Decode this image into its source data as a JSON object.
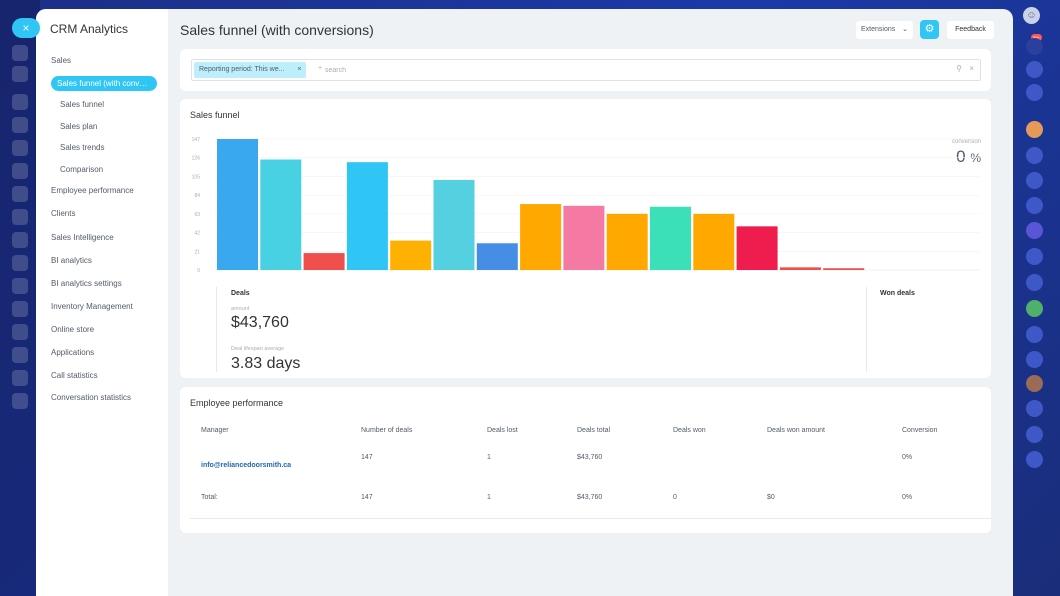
{
  "close_label": "×",
  "sidebar": {
    "title": "CRM Analytics",
    "items": [
      {
        "label": "Sales",
        "sub": false,
        "active": false
      },
      {
        "label": "Sales funnel (with conversions)",
        "sub": false,
        "active": true
      },
      {
        "label": "Sales funnel",
        "sub": true,
        "active": false
      },
      {
        "label": "Sales plan",
        "sub": true,
        "active": false
      },
      {
        "label": "Sales trends",
        "sub": true,
        "active": false
      },
      {
        "label": "Comparison",
        "sub": true,
        "active": false
      },
      {
        "label": "Employee performance",
        "sub": false,
        "active": false
      },
      {
        "label": "Clients",
        "sub": false,
        "active": false
      },
      {
        "label": "Sales Intelligence",
        "sub": false,
        "active": false
      },
      {
        "label": "BI analytics",
        "sub": false,
        "active": false
      },
      {
        "label": "BI analytics settings",
        "sub": false,
        "active": false
      },
      {
        "label": "Inventory Management",
        "sub": false,
        "active": false
      },
      {
        "label": "Online store",
        "sub": false,
        "active": false
      },
      {
        "label": "Applications",
        "sub": false,
        "active": false
      },
      {
        "label": "Call statistics",
        "sub": false,
        "active": false
      },
      {
        "label": "Conversation statistics",
        "sub": false,
        "active": false
      }
    ]
  },
  "header": {
    "title": "Sales funnel (with conversions)",
    "extensions_label": "Extensions",
    "feedback_label": "Feedback"
  },
  "filter": {
    "chip_label": "Reporting period: This we...",
    "search_placeholder": "search",
    "plus": "+"
  },
  "funnel": {
    "title": "Sales funnel",
    "conversion_label": "conversion",
    "conversion_value": "0",
    "conversion_unit": "%",
    "deals_title": "Deals",
    "amount_label": "amount",
    "amount_value": "$43,760",
    "lifespan_label": "Deal lifespan average",
    "lifespan_value": "3.83 days",
    "won_title": "Won deals"
  },
  "chart_data": {
    "type": "bar",
    "y_ticks": [
      "147",
      "126",
      "105",
      "84",
      "63",
      "42",
      "21",
      "0"
    ],
    "ylim": [
      0,
      147
    ],
    "values": [
      147,
      124,
      19,
      121,
      33,
      101,
      30,
      74,
      72,
      63,
      71,
      63,
      49,
      3,
      2
    ],
    "colors": [
      "#39a8ef",
      "#47d1e2",
      "#f0504c",
      "#2fc6f6",
      "#ffb100",
      "#55d0e0",
      "#468ee5",
      "#ffa900",
      "#f47aa4",
      "#ffa900",
      "#3be0b8",
      "#ffa900",
      "#ee1d4d",
      "#f0504c",
      "#f0504c"
    ]
  },
  "employee": {
    "title": "Employee performance",
    "columns": [
      "Manager",
      "Number of deals",
      "Deals lost",
      "Deals total",
      "Deals won",
      "Deals won amount",
      "Conversion"
    ],
    "rows": [
      {
        "manager": "info@reliancedoorsmith.ca",
        "deals": "147",
        "lost": "1",
        "total": "$43,760",
        "won": "",
        "won_amount": "",
        "conversion": "0%"
      }
    ],
    "total": {
      "label": "Total:",
      "deals": "147",
      "lost": "1",
      "total": "$43,760",
      "won": "0",
      "won_amount": "$0",
      "conversion": "0%"
    }
  },
  "rightbar": {
    "notifications_badge": "99+"
  }
}
